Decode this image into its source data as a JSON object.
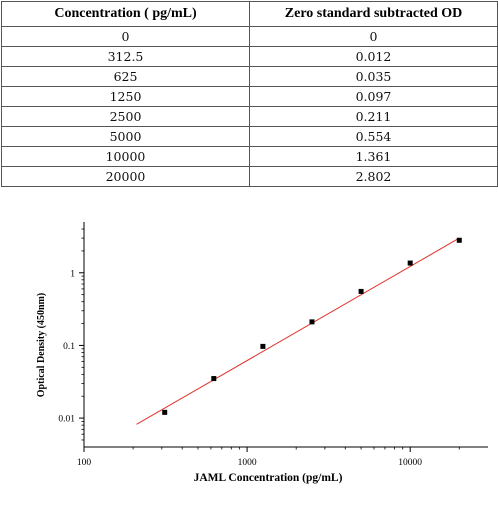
{
  "table": {
    "headers": [
      "Concentration ( pg/mL)",
      "Zero standard subtracted OD"
    ],
    "rows": [
      [
        "0",
        "0"
      ],
      [
        "312.5",
        "0.012"
      ],
      [
        "625",
        "0.035"
      ],
      [
        "1250",
        "0.097"
      ],
      [
        "2500",
        "0.211"
      ],
      [
        "5000",
        "0.554"
      ],
      [
        "10000",
        "1.361"
      ],
      [
        "20000",
        "2.802"
      ]
    ]
  },
  "chart_data": {
    "type": "scatter",
    "xlabel": "JAML Concentration (pg/mL)",
    "ylabel": "Optical Density (450nm)",
    "x_scale": "log",
    "y_scale": "log",
    "xlim": [
      100,
      30000
    ],
    "ylim": [
      0.004,
      5
    ],
    "x_ticks": [
      100,
      1000,
      10000
    ],
    "x_tick_labels": [
      "100",
      "1000",
      "10000"
    ],
    "y_ticks": [
      0.01,
      0.1,
      1
    ],
    "y_tick_labels": [
      "0.01",
      "0.1",
      "1"
    ],
    "grid": false,
    "points": [
      {
        "x": 312.5,
        "y": 0.012
      },
      {
        "x": 625,
        "y": 0.035
      },
      {
        "x": 1250,
        "y": 0.097
      },
      {
        "x": 2500,
        "y": 0.211
      },
      {
        "x": 5000,
        "y": 0.554
      },
      {
        "x": 10000,
        "y": 1.361
      },
      {
        "x": 20000,
        "y": 2.802
      }
    ],
    "fit_line": {
      "x": [
        210,
        20000
      ],
      "y": [
        0.0082,
        3.0
      ],
      "color": "#e0302a"
    },
    "marker_color": "#000000"
  }
}
